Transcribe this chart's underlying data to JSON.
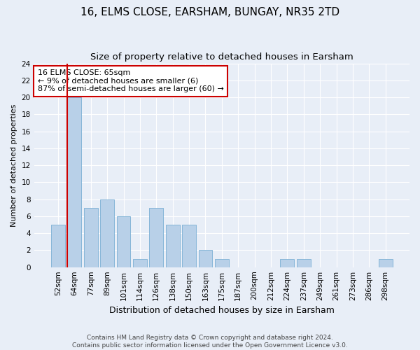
{
  "title": "16, ELMS CLOSE, EARSHAM, BUNGAY, NR35 2TD",
  "subtitle": "Size of property relative to detached houses in Earsham",
  "xlabel": "Distribution of detached houses by size in Earsham",
  "ylabel": "Number of detached properties",
  "categories": [
    "52sqm",
    "64sqm",
    "77sqm",
    "89sqm",
    "101sqm",
    "114sqm",
    "126sqm",
    "138sqm",
    "150sqm",
    "163sqm",
    "175sqm",
    "187sqm",
    "200sqm",
    "212sqm",
    "224sqm",
    "237sqm",
    "249sqm",
    "261sqm",
    "273sqm",
    "286sqm",
    "298sqm"
  ],
  "values": [
    5,
    20,
    7,
    8,
    6,
    1,
    7,
    5,
    5,
    2,
    1,
    0,
    0,
    0,
    1,
    1,
    0,
    0,
    0,
    0,
    1
  ],
  "bar_color": "#b8d0e8",
  "bar_edge_color": "#7aafd4",
  "vline_color": "#cc0000",
  "annotation_text": "16 ELMS CLOSE: 65sqm\n← 9% of detached houses are smaller (6)\n87% of semi-detached houses are larger (60) →",
  "annotation_box_color": "#ffffff",
  "annotation_box_edge_color": "#cc0000",
  "ylim": [
    0,
    24
  ],
  "yticks": [
    0,
    2,
    4,
    6,
    8,
    10,
    12,
    14,
    16,
    18,
    20,
    22,
    24
  ],
  "bg_color": "#e8eef7",
  "plot_bg_color": "#e8eef7",
  "footer_text": "Contains HM Land Registry data © Crown copyright and database right 2024.\nContains public sector information licensed under the Open Government Licence v3.0.",
  "title_fontsize": 11,
  "subtitle_fontsize": 9.5,
  "xlabel_fontsize": 9,
  "ylabel_fontsize": 8,
  "tick_fontsize": 7.5,
  "annotation_fontsize": 8,
  "footer_fontsize": 6.5
}
